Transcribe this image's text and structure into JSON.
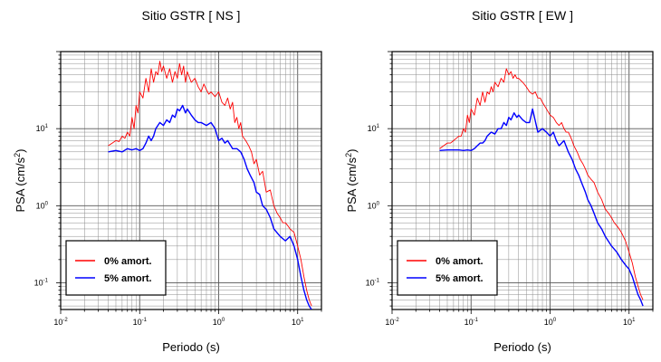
{
  "chart_data": [
    {
      "type": "line",
      "title": "Sitio GSTR [ NS ]",
      "xlabel": "Periodo (s)",
      "ylabel": "PSA (cm/s2)",
      "xscale": "log",
      "yscale": "log",
      "xlim": [
        0.01,
        20
      ],
      "ylim": [
        0.045,
        100
      ],
      "xticks": [
        {
          "b": "10",
          "e": "-2",
          "v": 0.01
        },
        {
          "b": "10",
          "e": "-1",
          "v": 0.1
        },
        {
          "b": "10",
          "e": "0",
          "v": 1
        },
        {
          "b": "10",
          "e": "1",
          "v": 10
        }
      ],
      "yticks": [
        {
          "b": "10",
          "e": "-1",
          "v": 0.1
        },
        {
          "b": "10",
          "e": "0",
          "v": 1
        },
        {
          "b": "10",
          "e": "1",
          "v": 10
        }
      ],
      "grid": true,
      "legend_position": "bottom-left",
      "series": [
        {
          "name": "0% amort.",
          "color": "#ff0000",
          "x": [
            0.04,
            0.045,
            0.05,
            0.055,
            0.06,
            0.065,
            0.07,
            0.075,
            0.08,
            0.085,
            0.09,
            0.095,
            0.1,
            0.11,
            0.12,
            0.13,
            0.14,
            0.15,
            0.16,
            0.17,
            0.18,
            0.19,
            0.2,
            0.22,
            0.24,
            0.26,
            0.28,
            0.3,
            0.32,
            0.34,
            0.36,
            0.38,
            0.4,
            0.45,
            0.5,
            0.55,
            0.6,
            0.65,
            0.7,
            0.75,
            0.8,
            0.9,
            1.0,
            1.1,
            1.2,
            1.3,
            1.4,
            1.5,
            1.6,
            1.7,
            1.8,
            1.9,
            2.0,
            2.2,
            2.4,
            2.6,
            2.8,
            3.0,
            3.3,
            3.6,
            4.0,
            4.5,
            5.0,
            5.5,
            6.0,
            6.5,
            7.0,
            7.5,
            8.0,
            9.0,
            10.0,
            11.0,
            12.0,
            13.0,
            14.0,
            15.0
          ],
          "y": [
            6,
            6.5,
            7,
            6.8,
            8,
            7.5,
            9,
            8,
            14,
            10,
            20,
            16,
            30,
            25,
            45,
            30,
            60,
            40,
            55,
            50,
            75,
            55,
            65,
            45,
            60,
            40,
            55,
            45,
            70,
            50,
            65,
            40,
            55,
            40,
            45,
            35,
            30,
            38,
            32,
            28,
            30,
            26,
            30,
            22,
            20,
            25,
            18,
            22,
            12,
            14,
            10,
            12,
            8,
            7,
            6,
            5,
            3.5,
            4,
            2.5,
            2.8,
            1.5,
            1.6,
            1.0,
            0.8,
            0.7,
            0.6,
            0.6,
            0.55,
            0.5,
            0.45,
            0.3,
            0.2,
            0.12,
            0.08,
            0.06,
            0.05
          ]
        },
        {
          "name": "5% amort.",
          "color": "#0000ff",
          "x": [
            0.04,
            0.05,
            0.06,
            0.07,
            0.08,
            0.09,
            0.1,
            0.11,
            0.12,
            0.13,
            0.14,
            0.15,
            0.16,
            0.18,
            0.2,
            0.22,
            0.24,
            0.26,
            0.28,
            0.3,
            0.32,
            0.35,
            0.38,
            0.4,
            0.45,
            0.5,
            0.55,
            0.6,
            0.7,
            0.8,
            0.9,
            1.0,
            1.1,
            1.2,
            1.3,
            1.5,
            1.7,
            1.9,
            2.1,
            2.3,
            2.5,
            2.8,
            3.0,
            3.3,
            3.6,
            4.0,
            4.5,
            5.0,
            6.0,
            7.0,
            8.0,
            9.0,
            10.0,
            11.0,
            12.0,
            13.0,
            14.0,
            15.0
          ],
          "y": [
            5.0,
            5.2,
            5.0,
            5.5,
            5.3,
            5.5,
            5.2,
            5.5,
            6.5,
            8,
            7,
            8,
            10,
            12,
            11,
            13,
            12,
            15,
            14,
            18,
            17,
            20,
            16,
            18,
            15,
            13,
            12,
            12,
            11,
            12,
            10,
            7,
            7.5,
            6.5,
            7,
            5.5,
            5.5,
            5,
            4,
            3,
            2.5,
            2,
            1.5,
            1.4,
            1.0,
            0.9,
            0.7,
            0.5,
            0.4,
            0.35,
            0.4,
            0.3,
            0.2,
            0.12,
            0.08,
            0.06,
            0.05,
            0.045
          ]
        }
      ]
    },
    {
      "type": "line",
      "title": "Sitio GSTR [ EW ]",
      "xlabel": "Periodo (s)",
      "ylabel": "PSA (cm/s2)",
      "xscale": "log",
      "yscale": "log",
      "xlim": [
        0.01,
        20
      ],
      "ylim": [
        0.045,
        100
      ],
      "xticks": [
        {
          "b": "10",
          "e": "-2",
          "v": 0.01
        },
        {
          "b": "10",
          "e": "-1",
          "v": 0.1
        },
        {
          "b": "10",
          "e": "0",
          "v": 1
        },
        {
          "b": "10",
          "e": "1",
          "v": 10
        }
      ],
      "yticks": [
        {
          "b": "10",
          "e": "-1",
          "v": 0.1
        },
        {
          "b": "10",
          "e": "0",
          "v": 1
        },
        {
          "b": "10",
          "e": "1",
          "v": 10
        }
      ],
      "grid": true,
      "legend_position": "bottom-left",
      "series": [
        {
          "name": "0% amort.",
          "color": "#ff0000",
          "x": [
            0.04,
            0.045,
            0.05,
            0.055,
            0.06,
            0.065,
            0.07,
            0.075,
            0.08,
            0.085,
            0.09,
            0.095,
            0.1,
            0.11,
            0.12,
            0.13,
            0.14,
            0.15,
            0.16,
            0.17,
            0.18,
            0.19,
            0.2,
            0.22,
            0.24,
            0.26,
            0.28,
            0.3,
            0.32,
            0.34,
            0.36,
            0.38,
            0.4,
            0.45,
            0.5,
            0.55,
            0.6,
            0.65,
            0.7,
            0.75,
            0.8,
            0.9,
            1.0,
            1.1,
            1.2,
            1.3,
            1.4,
            1.5,
            1.6,
            1.7,
            1.8,
            1.9,
            2.0,
            2.2,
            2.4,
            2.6,
            2.8,
            3.0,
            3.3,
            3.6,
            4.0,
            4.5,
            5.0,
            5.5,
            6.0,
            6.5,
            7.0,
            7.5,
            8.0,
            9.0,
            10.0,
            11.0,
            12.0,
            13.0,
            14.0,
            15.0
          ],
          "y": [
            5.5,
            6,
            6.5,
            6.5,
            7,
            7.5,
            8,
            8,
            10,
            9,
            15,
            12,
            18,
            15,
            25,
            20,
            30,
            22,
            30,
            28,
            35,
            30,
            40,
            35,
            45,
            40,
            60,
            50,
            55,
            45,
            50,
            45,
            45,
            40,
            35,
            30,
            28,
            30,
            25,
            25,
            22,
            18,
            15,
            14,
            12,
            11,
            12,
            10,
            9,
            9,
            8,
            7,
            6,
            5,
            4,
            3.5,
            3,
            2.5,
            2.2,
            2,
            1.5,
            1.2,
            0.9,
            0.8,
            0.7,
            0.6,
            0.55,
            0.5,
            0.45,
            0.35,
            0.25,
            0.18,
            0.12,
            0.09,
            0.07,
            0.06
          ]
        },
        {
          "name": "5% amort.",
          "color": "#0000ff",
          "x": [
            0.04,
            0.05,
            0.06,
            0.07,
            0.08,
            0.09,
            0.1,
            0.11,
            0.12,
            0.13,
            0.14,
            0.15,
            0.16,
            0.18,
            0.2,
            0.22,
            0.24,
            0.26,
            0.28,
            0.3,
            0.32,
            0.35,
            0.38,
            0.4,
            0.45,
            0.5,
            0.55,
            0.6,
            0.7,
            0.8,
            0.9,
            1.0,
            1.1,
            1.2,
            1.3,
            1.5,
            1.7,
            1.9,
            2.1,
            2.3,
            2.5,
            2.8,
            3.0,
            3.3,
            3.6,
            4.0,
            4.5,
            5.0,
            6.0,
            7.0,
            8.0,
            9.0,
            10.0,
            11.0,
            12.0,
            13.0,
            14.0,
            15.0
          ],
          "y": [
            5.2,
            5.3,
            5.3,
            5.3,
            5.2,
            5.3,
            5.2,
            5.5,
            6,
            6.5,
            6.5,
            7,
            8,
            9,
            8.5,
            10,
            10,
            12,
            11,
            14,
            13,
            16,
            14,
            15,
            13,
            12,
            12,
            18,
            9,
            10,
            9,
            8,
            9,
            7,
            6,
            7,
            5,
            4,
            3,
            2.5,
            2,
            1.5,
            1.2,
            1.0,
            0.8,
            0.6,
            0.5,
            0.4,
            0.3,
            0.25,
            0.2,
            0.17,
            0.15,
            0.12,
            0.09,
            0.07,
            0.06,
            0.05
          ]
        }
      ]
    }
  ]
}
